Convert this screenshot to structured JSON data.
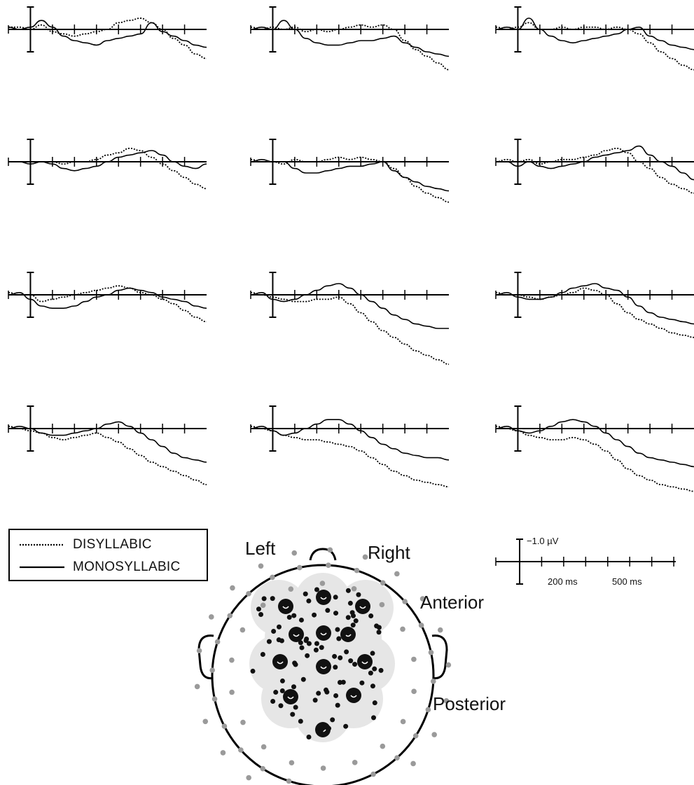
{
  "chart_data": {
    "type": "line",
    "description_panels": "4x3 grid of event-related potential waveforms, negative plotted up",
    "x_unit": "ms",
    "y_unit": "µV",
    "legend": [
      {
        "name": "DISYLLABIC",
        "style": "dotted"
      },
      {
        "name": "MONOSYLLABIC",
        "style": "solid"
      }
    ],
    "scale_bar": {
      "amplitude_label": "−1.0 µV",
      "time_labels": [
        "200 ms",
        "500 ms"
      ]
    },
    "panels": [
      {
        "row": 0,
        "col": 0,
        "x": [
          -100,
          -50,
          0,
          50,
          100,
          150,
          200,
          250,
          300,
          350,
          400,
          450,
          500,
          550,
          600,
          650,
          700,
          750,
          800
        ],
        "series": [
          {
            "name": "DISYLLABIC",
            "values": [
              0.1,
              0.1,
              0.0,
              0.2,
              -0.1,
              -0.2,
              -0.3,
              -0.2,
              -0.1,
              0.0,
              0.3,
              0.4,
              0.5,
              0.3,
              0.0,
              -0.4,
              -0.7,
              -1.1,
              -1.3
            ]
          },
          {
            "name": "MONOSYLLABIC",
            "values": [
              0.1,
              0.0,
              0.1,
              0.4,
              0.1,
              -0.3,
              -0.5,
              -0.6,
              -0.7,
              -0.5,
              -0.4,
              -0.3,
              -0.2,
              0.3,
              -0.1,
              -0.3,
              -0.5,
              -0.7,
              -0.8
            ]
          }
        ]
      },
      {
        "row": 0,
        "col": 1,
        "x": [
          -100,
          -50,
          0,
          50,
          100,
          150,
          200,
          250,
          300,
          350,
          400,
          450,
          500,
          550,
          600,
          650,
          700,
          750,
          800
        ],
        "series": [
          {
            "name": "DISYLLABIC",
            "values": [
              0.1,
              0.0,
              0.1,
              0.0,
              0.1,
              -0.1,
              0.0,
              -0.1,
              0.0,
              0.1,
              0.2,
              0.1,
              0.2,
              0.0,
              -0.5,
              -0.9,
              -1.2,
              -1.5,
              -1.8
            ]
          },
          {
            "name": "MONOSYLLABIC",
            "values": [
              0.0,
              0.1,
              0.0,
              0.4,
              0.0,
              -0.4,
              -0.6,
              -0.7,
              -0.7,
              -0.6,
              -0.5,
              -0.5,
              -0.4,
              -0.3,
              -0.6,
              -0.8,
              -1.0,
              -1.1,
              -1.2
            ]
          }
        ]
      },
      {
        "row": 0,
        "col": 2,
        "x": [
          -100,
          -50,
          0,
          50,
          100,
          150,
          200,
          250,
          300,
          350,
          400,
          450,
          500,
          550,
          600,
          650,
          700,
          750,
          800
        ],
        "series": [
          {
            "name": "DISYLLABIC",
            "values": [
              0.1,
              0.0,
              0.1,
              0.3,
              0.0,
              0.0,
              0.1,
              0.0,
              0.1,
              0.1,
              0.0,
              0.1,
              0.0,
              -0.2,
              -0.6,
              -1.0,
              -1.3,
              -1.6,
              -1.8
            ]
          },
          {
            "name": "MONOSYLLABIC",
            "values": [
              0.0,
              0.1,
              0.0,
              0.5,
              0.0,
              -0.3,
              -0.5,
              -0.6,
              -0.5,
              -0.4,
              -0.3,
              -0.2,
              0.0,
              0.1,
              -0.3,
              -0.5,
              -0.7,
              -0.8,
              -0.9
            ]
          }
        ]
      },
      {
        "row": 1,
        "col": 0,
        "x": [
          -100,
          -50,
          0,
          50,
          100,
          150,
          200,
          250,
          300,
          350,
          400,
          450,
          500,
          550,
          600,
          650,
          700,
          750,
          800
        ],
        "series": [
          {
            "name": "DISYLLABIC",
            "values": [
              0.0,
              0.0,
              0.0,
              0.0,
              0.0,
              -0.1,
              0.0,
              0.0,
              0.1,
              0.3,
              0.4,
              0.6,
              0.5,
              0.2,
              -0.1,
              -0.4,
              -0.7,
              -1.0,
              -1.2
            ]
          },
          {
            "name": "MONOSYLLABIC",
            "values": [
              0.0,
              0.0,
              -0.1,
              0.0,
              -0.1,
              -0.3,
              -0.4,
              -0.3,
              -0.2,
              0.0,
              0.2,
              0.3,
              0.4,
              0.5,
              0.3,
              0.0,
              -0.2,
              -0.3,
              -0.1
            ]
          }
        ]
      },
      {
        "row": 1,
        "col": 1,
        "x": [
          -100,
          -50,
          0,
          50,
          100,
          150,
          200,
          250,
          300,
          350,
          400,
          450,
          500,
          550,
          600,
          650,
          700,
          750,
          800
        ],
        "series": [
          {
            "name": "DISYLLABIC",
            "values": [
              0.1,
              0.0,
              0.0,
              -0.1,
              0.1,
              0.0,
              0.0,
              0.1,
              0.2,
              0.1,
              0.2,
              0.1,
              0.0,
              -0.3,
              -0.7,
              -1.1,
              -1.4,
              -1.6,
              -1.8
            ]
          },
          {
            "name": "MONOSYLLABIC",
            "values": [
              0.0,
              0.1,
              0.0,
              0.0,
              -0.3,
              -0.5,
              -0.5,
              -0.4,
              -0.3,
              -0.2,
              -0.2,
              -0.1,
              0.0,
              -0.4,
              -0.7,
              -0.9,
              -1.1,
              -1.2,
              -1.3
            ]
          }
        ]
      },
      {
        "row": 1,
        "col": 2,
        "x": [
          -100,
          -50,
          0,
          50,
          100,
          150,
          200,
          250,
          300,
          350,
          400,
          450,
          500,
          550,
          600,
          650,
          700,
          750,
          800
        ],
        "series": [
          {
            "name": "DISYLLABIC",
            "values": [
              0.0,
              0.1,
              0.0,
              0.1,
              -0.1,
              0.0,
              0.1,
              0.1,
              0.2,
              0.3,
              0.5,
              0.6,
              0.4,
              0.0,
              -0.3,
              -0.7,
              -1.0,
              -1.2,
              -1.4
            ]
          },
          {
            "name": "MONOSYLLABIC",
            "values": [
              0.0,
              0.0,
              -0.2,
              0.0,
              -0.2,
              -0.3,
              -0.2,
              -0.1,
              0.0,
              0.2,
              0.3,
              0.4,
              0.5,
              0.7,
              0.3,
              0.0,
              -0.2,
              -0.5,
              -0.8
            ]
          }
        ]
      },
      {
        "row": 2,
        "col": 0,
        "x": [
          -100,
          -50,
          0,
          50,
          100,
          150,
          200,
          250,
          300,
          350,
          400,
          450,
          500,
          550,
          600,
          650,
          700,
          750,
          800
        ],
        "series": [
          {
            "name": "DISYLLABIC",
            "values": [
              0.1,
              0.0,
              0.0,
              -0.3,
              -0.2,
              -0.1,
              0.0,
              0.1,
              0.2,
              0.3,
              0.4,
              0.3,
              0.1,
              0.0,
              -0.2,
              -0.4,
              -0.7,
              -1.0,
              -1.2
            ]
          },
          {
            "name": "MONOSYLLABIC",
            "values": [
              0.0,
              0.1,
              -0.2,
              -0.5,
              -0.6,
              -0.6,
              -0.5,
              -0.3,
              -0.1,
              0.0,
              0.2,
              0.3,
              0.2,
              0.1,
              -0.1,
              -0.2,
              -0.3,
              -0.5,
              -0.6
            ]
          }
        ]
      },
      {
        "row": 2,
        "col": 1,
        "x": [
          -100,
          -50,
          0,
          50,
          100,
          150,
          200,
          250,
          300,
          350,
          400,
          450,
          500,
          550,
          600,
          650,
          700,
          750,
          800
        ],
        "series": [
          {
            "name": "DISYLLABIC",
            "values": [
              0.1,
              0.0,
              -0.1,
              -0.2,
              -0.3,
              -0.3,
              -0.2,
              -0.2,
              -0.1,
              -0.4,
              -0.8,
              -1.2,
              -1.6,
              -1.9,
              -2.2,
              -2.5,
              -2.7,
              -2.9,
              -3.1
            ]
          },
          {
            "name": "MONOSYLLABIC",
            "values": [
              0.0,
              0.1,
              -0.2,
              -0.3,
              -0.2,
              0.0,
              0.2,
              0.4,
              0.5,
              0.3,
              0.0,
              -0.3,
              -0.6,
              -0.9,
              -1.1,
              -1.3,
              -1.4,
              -1.5,
              -1.5
            ]
          }
        ]
      },
      {
        "row": 2,
        "col": 2,
        "x": [
          -100,
          -50,
          0,
          50,
          100,
          150,
          200,
          250,
          300,
          350,
          400,
          450,
          500,
          550,
          600,
          650,
          700,
          750,
          800
        ],
        "series": [
          {
            "name": "DISYLLABIC",
            "values": [
              0.1,
              0.0,
              0.0,
              -0.1,
              -0.2,
              -0.1,
              0.0,
              0.1,
              0.3,
              0.2,
              0.0,
              -0.4,
              -0.8,
              -1.1,
              -1.3,
              -1.5,
              -1.7,
              -1.8,
              -1.9
            ]
          },
          {
            "name": "MONOSYLLABIC",
            "values": [
              0.0,
              0.1,
              -0.1,
              -0.2,
              -0.2,
              -0.1,
              0.1,
              0.3,
              0.4,
              0.5,
              0.3,
              0.2,
              -0.1,
              -0.5,
              -0.8,
              -1.0,
              -1.1,
              -1.2,
              -1.3
            ]
          }
        ]
      },
      {
        "row": 3,
        "col": 0,
        "x": [
          -100,
          -50,
          0,
          50,
          100,
          150,
          200,
          250,
          300,
          350,
          400,
          450,
          500,
          550,
          600,
          650,
          700,
          750,
          800
        ],
        "series": [
          {
            "name": "DISYLLABIC",
            "values": [
              0.1,
              0.0,
              -0.1,
              -0.2,
              -0.4,
              -0.5,
              -0.4,
              -0.3,
              -0.2,
              -0.4,
              -0.6,
              -0.9,
              -1.2,
              -1.5,
              -1.7,
              -1.9,
              -2.1,
              -2.3,
              -2.5
            ]
          },
          {
            "name": "MONOSYLLABIC",
            "values": [
              0.0,
              0.1,
              0.0,
              -0.2,
              -0.3,
              -0.3,
              -0.2,
              -0.1,
              0.0,
              0.2,
              0.3,
              0.1,
              -0.2,
              -0.5,
              -0.8,
              -1.1,
              -1.3,
              -1.4,
              -1.5
            ]
          }
        ]
      },
      {
        "row": 3,
        "col": 1,
        "x": [
          -100,
          -50,
          0,
          50,
          100,
          150,
          200,
          250,
          300,
          350,
          400,
          450,
          500,
          550,
          600,
          650,
          700,
          750,
          800
        ],
        "series": [
          {
            "name": "DISYLLABIC",
            "values": [
              0.1,
              0.0,
              -0.1,
              -0.3,
              -0.4,
              -0.5,
              -0.5,
              -0.6,
              -0.7,
              -0.8,
              -1.0,
              -1.3,
              -1.6,
              -1.9,
              -2.1,
              -2.3,
              -2.4,
              -2.5,
              -2.6
            ]
          },
          {
            "name": "MONOSYLLABIC",
            "values": [
              0.0,
              0.1,
              -0.1,
              -0.3,
              -0.2,
              0.0,
              0.2,
              0.4,
              0.4,
              0.2,
              -0.1,
              -0.4,
              -0.7,
              -0.9,
              -1.1,
              -1.2,
              -1.3,
              -1.3,
              -1.4
            ]
          }
        ]
      },
      {
        "row": 3,
        "col": 2,
        "x": [
          -100,
          -50,
          0,
          50,
          100,
          150,
          200,
          250,
          300,
          350,
          400,
          450,
          500,
          550,
          600,
          650,
          700,
          750,
          800
        ],
        "series": [
          {
            "name": "DISYLLABIC",
            "values": [
              0.1,
              0.0,
              -0.1,
              -0.3,
              -0.4,
              -0.5,
              -0.5,
              -0.4,
              -0.5,
              -0.7,
              -1.0,
              -1.4,
              -1.8,
              -2.1,
              -2.3,
              -2.5,
              -2.6,
              -2.7,
              -2.8
            ]
          },
          {
            "name": "MONOSYLLABIC",
            "values": [
              0.0,
              0.1,
              -0.1,
              -0.2,
              -0.1,
              0.1,
              0.3,
              0.4,
              0.3,
              0.1,
              -0.2,
              -0.5,
              -0.8,
              -1.1,
              -1.3,
              -1.4,
              -1.5,
              -1.6,
              -1.7
            ]
          }
        ]
      }
    ]
  },
  "head_map": {
    "labels": {
      "left": "Left",
      "right": "Right",
      "anterior": "Anterior",
      "posterior": "Posterior"
    },
    "fill_color": "#e6e6e6",
    "electrode_color": "#111111",
    "outer_electrode_color": "#9a9a9a"
  }
}
